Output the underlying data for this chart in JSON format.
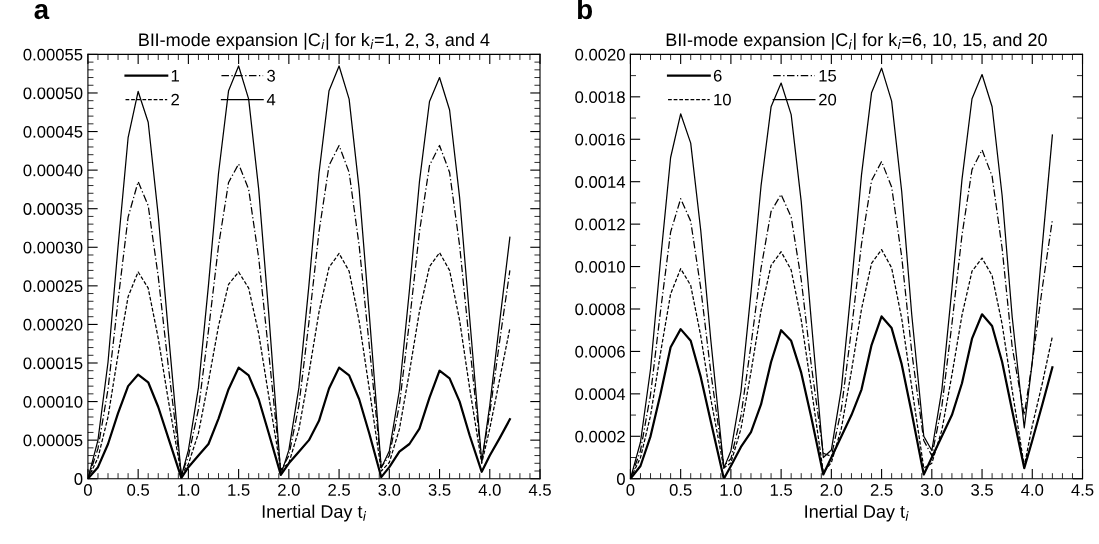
{
  "chart_data": [
    {
      "type": "line",
      "title": "BII-mode expansion |C$_{i}$| for k$_{i}$=1, 2, 3, and 4",
      "xlabel": "Inertial Day t$_{i}$",
      "annotations": [
        "a"
      ],
      "x": [
        0,
        0.1,
        0.2,
        0.3,
        0.4,
        0.5,
        0.6,
        0.7,
        0.8,
        0.93,
        1.0,
        1.1,
        1.2,
        1.3,
        1.4,
        1.5,
        1.6,
        1.7,
        1.8,
        1.92,
        2.0,
        2.1,
        2.2,
        2.3,
        2.4,
        2.5,
        2.6,
        2.7,
        2.8,
        2.92,
        3.0,
        3.1,
        3.2,
        3.3,
        3.4,
        3.5,
        3.6,
        3.7,
        3.8,
        3.92,
        4.0,
        4.1,
        4.2
      ],
      "xlim": [
        0,
        4.5
      ],
      "xticks": [
        0,
        {
          "value": 0.5,
          "label": "0.5"
        },
        {
          "value": 1,
          "label": "1.0"
        },
        {
          "value": 1.5,
          "label": "1.5"
        },
        {
          "value": 2,
          "label": "2.0"
        },
        {
          "value": 2.5,
          "label": "2.5"
        },
        {
          "value": 3,
          "label": "3.0"
        },
        {
          "value": 3.5,
          "label": "3.5"
        },
        {
          "value": 4,
          "label": "4.0"
        },
        {
          "value": 4.5,
          "label": "4.5"
        }
      ],
      "ylim": [
        0,
        0.00055
      ],
      "yticks": [
        0,
        {
          "value": 5e-05,
          "label": "0.00005"
        },
        {
          "value": 0.0001,
          "label": "0.00010"
        },
        {
          "value": 0.00015,
          "label": "0.00015"
        },
        {
          "value": 0.0002,
          "label": "0.00020"
        },
        {
          "value": 0.00025,
          "label": "0.00025"
        },
        {
          "value": 0.0003,
          "label": "0.00030"
        },
        {
          "value": 0.00035,
          "label": "0.00035"
        },
        {
          "value": 0.0004,
          "label": "0.00040"
        },
        {
          "value": 0.00045,
          "label": "0.00045"
        },
        {
          "value": 0.0005,
          "label": "0.00050"
        },
        {
          "value": 0.00055,
          "label": "0.00055"
        }
      ],
      "legend": "top left",
      "grid": false,
      "series": [
        {
          "name": "1",
          "color": "#000000",
          "line_style": "solid",
          "values": [
            0,
            1.5e-05,
            4.5e-05,
            8.5e-05,
            0.00012,
            0.000135,
            0.000125,
            9.3e-05,
            5.3e-05,
            1e-06,
            1.5e-05,
            3e-05,
            4.5e-05,
            7.8e-05,
            0.000116,
            0.000144,
            0.000134,
            0.000103,
            5.9e-05,
            5e-06,
            2e-05,
            3.5e-05,
            5e-05,
            7.5e-05,
            0.000117,
            0.000144,
            0.000134,
            0.000103,
            5.9e-05,
            2e-06,
            1.5e-05,
            3.5e-05,
            4.5e-05,
            6.5e-05,
            0.000105,
            0.00014,
            0.00013,
            0.0001,
            5.6e-05,
            9e-06,
            3e-05,
            5.3e-05,
            7.7e-05
          ]
        },
        {
          "name": "2",
          "color": "#000000",
          "line_style": "dashed",
          "values": [
            0,
            2.7e-05,
            8e-05,
            0.000161,
            0.000236,
            0.000268,
            0.000247,
            0.000182,
            0.000102,
            5e-06,
            1.9e-05,
            5.9e-05,
            0.000126,
            0.000198,
            0.000252,
            0.000268,
            0.000247,
            0.000188,
            0.000107,
            1.2e-05,
            2e-05,
            6.4e-05,
            0.000137,
            0.000216,
            0.000274,
            0.000292,
            0.000269,
            0.000204,
            0.000117,
            1e-05,
            2.1e-05,
            6.4e-05,
            0.000138,
            0.000217,
            0.000275,
            0.000293,
            0.00027,
            0.000205,
            0.000117,
            2e-05,
            6.5e-05,
            0.00013,
            0.000195
          ]
        },
        {
          "name": "3",
          "color": "#000000",
          "line_style": "dashdot",
          "values": [
            0,
            3.9e-05,
            0.000116,
            0.000231,
            0.000339,
            0.000385,
            0.000354,
            0.000262,
            0.000146,
            5e-06,
            2.9e-05,
            9e-05,
            0.000192,
            0.000302,
            0.000384,
            0.000408,
            0.000375,
            0.000286,
            0.000163,
            1e-05,
            3e-05,
            9.5e-05,
            0.000203,
            0.00032,
            0.000406,
            0.000432,
            0.000397,
            0.000302,
            0.000173,
            1.5e-05,
            3e-05,
            9.5e-05,
            0.000203,
            0.00032,
            0.000406,
            0.000432,
            0.000397,
            0.000302,
            0.000173,
            2.3e-05,
            8.5e-05,
            0.00018,
            0.00027
          ]
        },
        {
          "name": "4",
          "color": "#000000",
          "line_style": "solid",
          "values": [
            0,
            5e-05,
            0.000151,
            0.000301,
            0.000442,
            0.000502,
            0.000462,
            0.000341,
            0.000191,
            3e-06,
            3.7e-05,
            0.000118,
            0.000251,
            0.000396,
            0.000503,
            0.000535,
            0.000492,
            0.000375,
            0.000214,
            5e-06,
            3.7e-05,
            0.000118,
            0.000251,
            0.000396,
            0.000503,
            0.000535,
            0.000492,
            0.000375,
            0.000214,
            1.4e-05,
            3.6e-05,
            0.000114,
            0.000244,
            0.000385,
            0.000489,
            0.00052,
            0.000478,
            0.000364,
            0.000208,
            2.2e-05,
            9.5e-05,
            0.000205,
            0.000313
          ]
        }
      ]
    },
    {
      "type": "line",
      "title": "BII-mode expansion |C$_{i}$| for k$_{i}$=6, 10, 15, and 20",
      "xlabel": "Inertial Day t$_{i}$",
      "annotations": [
        "b"
      ],
      "x": [
        0,
        0.1,
        0.2,
        0.3,
        0.4,
        0.5,
        0.6,
        0.7,
        0.8,
        0.93,
        1.0,
        1.1,
        1.2,
        1.3,
        1.4,
        1.5,
        1.6,
        1.7,
        1.8,
        1.92,
        2.0,
        2.1,
        2.2,
        2.3,
        2.4,
        2.5,
        2.6,
        2.7,
        2.8,
        2.92,
        3.0,
        3.1,
        3.2,
        3.3,
        3.4,
        3.5,
        3.6,
        3.7,
        3.8,
        3.92,
        4.0,
        4.1,
        4.2
      ],
      "xlim": [
        0,
        4.5
      ],
      "xticks": [
        0,
        {
          "value": 0.5,
          "label": "0.5"
        },
        {
          "value": 1,
          "label": "1.0"
        },
        {
          "value": 1.5,
          "label": "1.5"
        },
        {
          "value": 2,
          "label": "2.0"
        },
        {
          "value": 2.5,
          "label": "2.5"
        },
        {
          "value": 3,
          "label": "3.0"
        },
        {
          "value": 3.5,
          "label": "3.5"
        },
        {
          "value": 4,
          "label": "4.0"
        },
        {
          "value": 4.5,
          "label": "4.5"
        }
      ],
      "ylim": [
        0,
        0.002
      ],
      "yticks": [
        0,
        {
          "value": 0.0002,
          "label": "0.0002"
        },
        {
          "value": 0.0004,
          "label": "0.0004"
        },
        {
          "value": 0.0006,
          "label": "0.0006"
        },
        {
          "value": 0.0008,
          "label": "0.0008"
        },
        {
          "value": 0.001,
          "label": "0.0010"
        },
        {
          "value": 0.0012,
          "label": "0.0012"
        },
        {
          "value": 0.0014,
          "label": "0.0014"
        },
        {
          "value": 0.0016,
          "label": "0.0016"
        },
        {
          "value": 0.0018,
          "label": "0.0018"
        },
        {
          "value": 0.002,
          "label": "0.0020"
        }
      ],
      "legend": "top left",
      "grid": false,
      "series": [
        {
          "name": "6",
          "color": "#000000",
          "line_style": "solid",
          "values": [
            0,
            6e-05,
            0.0002,
            0.0004,
            0.00062,
            0.000705,
            0.00065,
            0.00048,
            0.00027,
            0,
            6e-05,
            0.00015,
            0.00022,
            0.00035,
            0.00055,
            0.0007,
            0.00065,
            0.0005,
            0.00029,
            2e-05,
            0.0001,
            0.0002,
            0.0003,
            0.00042,
            0.00063,
            0.000765,
            0.00071,
            0.00054,
            0.00031,
            2e-05,
            0.0001,
            0.0002,
            0.0003,
            0.00045,
            0.00066,
            0.000775,
            0.00072,
            0.00055,
            0.00032,
            5e-05,
            0.00018,
            0.00035,
            0.000525
          ]
        },
        {
          "name": "10",
          "color": "#000000",
          "line_style": "dashed",
          "values": [
            0,
            9.9e-05,
            0.000297,
            0.000594,
            0.000871,
            0.00099,
            0.000911,
            0.000673,
            0.000376,
            5e-05,
            7.5e-05,
            0.000235,
            0.000503,
            0.000792,
            0.001006,
            0.00107,
            0.000984,
            0.000749,
            0.000428,
            3e-05,
            7.6e-05,
            0.000238,
            0.000508,
            0.000799,
            0.001015,
            0.00108,
            0.000994,
            0.000756,
            0.000432,
            5e-05,
            7.3e-05,
            0.000229,
            0.000489,
            0.00077,
            0.000978,
            0.00104,
            0.000957,
            0.000728,
            0.000416,
            6e-05,
            0.00025,
            0.00045,
            0.00067
          ]
        },
        {
          "name": "15",
          "color": "#000000",
          "line_style": "dashdot",
          "values": [
            0,
            0.000132,
            0.000396,
            0.000792,
            0.001162,
            0.00132,
            0.001214,
            0.000898,
            0.000502,
            6e-05,
            9.4e-05,
            0.000295,
            0.00063,
            0.000992,
            0.00126,
            0.00134,
            0.001233,
            0.000938,
            0.000536,
            0.00012,
            0.000105,
            0.000329,
            0.000703,
            0.001106,
            0.001405,
            0.001495,
            0.001375,
            0.001047,
            0.000598,
            0.00018,
            0.000109,
            0.000341,
            0.000729,
            0.001147,
            0.001457,
            0.00155,
            0.001426,
            0.001085,
            0.00062,
            0.0003,
            0.00055,
            0.0009,
            0.00122
          ]
        },
        {
          "name": "20",
          "color": "#000000",
          "line_style": "solid",
          "values": [
            0,
            0.000172,
            0.000516,
            0.001032,
            0.001514,
            0.00172,
            0.001582,
            0.00117,
            0.000654,
            5e-05,
            0.000131,
            0.00041,
            0.000877,
            0.00138,
            0.001753,
            0.001865,
            0.001716,
            0.001306,
            0.000746,
            0.0001,
            0.000135,
            0.000426,
            0.000909,
            0.001432,
            0.001819,
            0.001935,
            0.00178,
            0.001355,
            0.000774,
            0.0002,
            0.000133,
            0.000419,
            0.000895,
            0.00141,
            0.001791,
            0.001905,
            0.001753,
            0.001334,
            0.000762,
            0.00024,
            0.00055,
            0.0011,
            0.00162
          ]
        }
      ]
    }
  ]
}
